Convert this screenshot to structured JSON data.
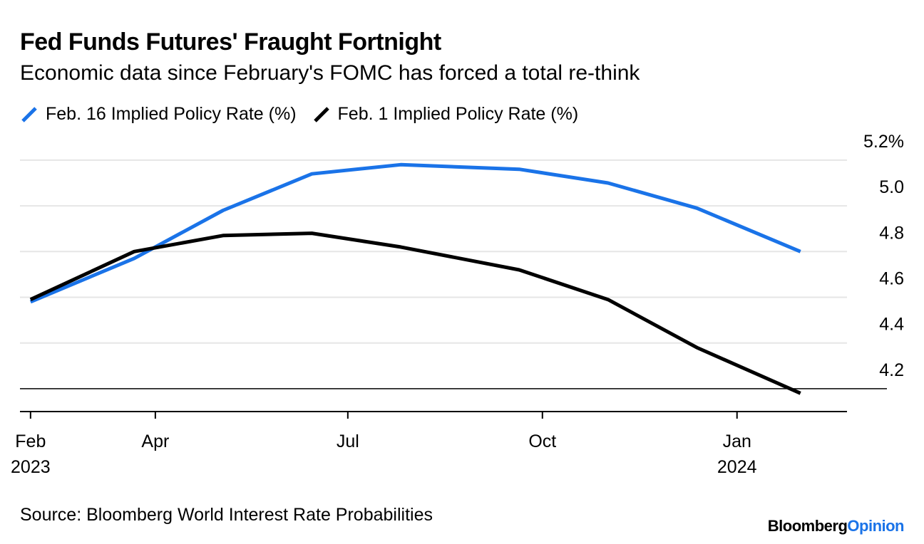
{
  "title": "Fed Funds Futures' Fraught Fortnight",
  "subtitle": "Economic data since February's FOMC has forced a total re-think",
  "source": "Source: Bloomberg World Interest Rate Probabilities",
  "brand": {
    "part1": "Bloomberg",
    "part2": "Opinion"
  },
  "colors": {
    "blue": "#1A73E8",
    "black": "#000000",
    "grid": "#E6E6E6",
    "brand_accent": "#1A73E8"
  },
  "chart_data": {
    "type": "line",
    "title": "Fed Funds Futures' Fraught Fortnight",
    "subtitle": "Economic data since February's FOMC has forced a total re-think",
    "x_axis": {
      "min": "2023-01-27",
      "max": "2024-02-22",
      "ticks": [
        {
          "date": "2023-02-01",
          "label": "Feb",
          "sublabel": "2023"
        },
        {
          "date": "2023-04-01",
          "label": "Apr",
          "sublabel": ""
        },
        {
          "date": "2023-07-01",
          "label": "Jul",
          "sublabel": ""
        },
        {
          "date": "2023-10-01",
          "label": "Oct",
          "sublabel": ""
        },
        {
          "date": "2024-01-01",
          "label": "Jan",
          "sublabel": "2024"
        }
      ]
    },
    "y_axis": {
      "min": 4.1,
      "max": 5.29,
      "position": "right",
      "ticks": [
        {
          "value": 5.2,
          "label": "5.2%"
        },
        {
          "value": 5.0,
          "label": "5.0"
        },
        {
          "value": 4.8,
          "label": "4.8"
        },
        {
          "value": 4.6,
          "label": "4.6"
        },
        {
          "value": 4.4,
          "label": "4.4"
        },
        {
          "value": 4.2,
          "label": "4.2"
        }
      ]
    },
    "grid": true,
    "legend_position": "top-left",
    "series": [
      {
        "name": "Feb. 16 Implied Policy Rate (%)",
        "color": "#1A73E8",
        "points": [
          [
            "2023-02-01",
            4.58
          ],
          [
            "2023-03-22",
            4.77
          ],
          [
            "2023-05-03",
            4.98
          ],
          [
            "2023-06-14",
            5.14
          ],
          [
            "2023-07-26",
            5.18
          ],
          [
            "2023-09-20",
            5.16
          ],
          [
            "2023-11-01",
            5.1
          ],
          [
            "2023-12-13",
            4.99
          ],
          [
            "2024-01-31",
            4.8
          ]
        ]
      },
      {
        "name": "Feb. 1 Implied Policy Rate (%)",
        "color": "#000000",
        "points": [
          [
            "2023-02-01",
            4.59
          ],
          [
            "2023-03-22",
            4.8
          ],
          [
            "2023-05-03",
            4.87
          ],
          [
            "2023-06-14",
            4.88
          ],
          [
            "2023-07-26",
            4.82
          ],
          [
            "2023-09-20",
            4.72
          ],
          [
            "2023-11-01",
            4.59
          ],
          [
            "2023-12-13",
            4.38
          ],
          [
            "2024-01-31",
            4.18
          ]
        ]
      }
    ]
  }
}
